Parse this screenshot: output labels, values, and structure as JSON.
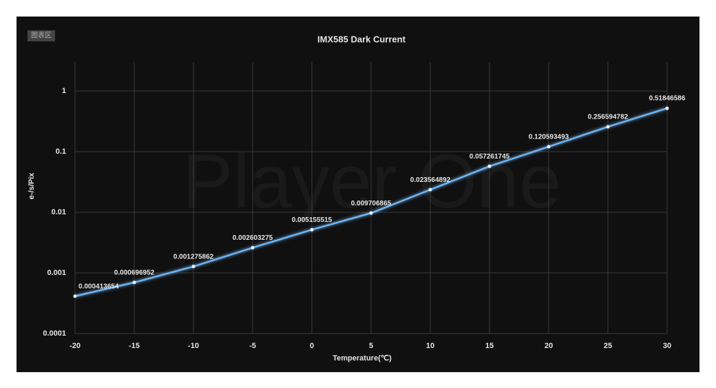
{
  "chart_data": {
    "type": "line",
    "title": "IMX585 Dark Current",
    "panel_label": "图表区",
    "watermark": "Player One",
    "xlabel": "Temperature(℃)",
    "ylabel": "e-/s/Pix",
    "x": [
      -20,
      -15,
      -10,
      -5,
      0,
      5,
      10,
      15,
      20,
      25,
      30
    ],
    "values": [
      0.000413654,
      0.000696952,
      0.001275862,
      0.002603275,
      0.005155515,
      0.009706865,
      0.023564892,
      0.057261745,
      0.120593493,
      0.256594782,
      0.51846586
    ],
    "color": "#6fb4f0",
    "xlim": [
      -20,
      30
    ],
    "xticks": [
      -20,
      -15,
      -10,
      -5,
      0,
      5,
      10,
      15,
      20,
      25,
      30
    ],
    "ylim": [
      0.0001,
      3
    ],
    "yticks": [
      0.0001,
      0.001,
      0.01,
      0.1,
      1
    ],
    "log_y": true,
    "grid": true
  }
}
